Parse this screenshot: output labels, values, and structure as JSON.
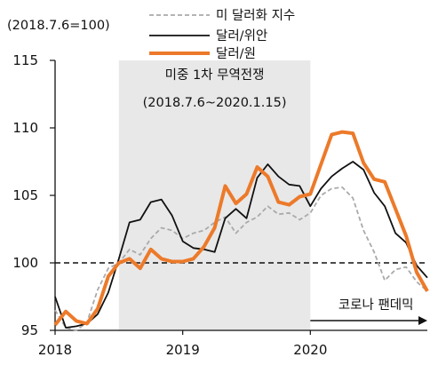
{
  "chart_data": {
    "type": "line",
    "unit_label": "(2018.7.6=100)",
    "x_ticks": [
      "2018",
      "2019",
      "2020"
    ],
    "y_ticks": [
      95,
      100,
      105,
      110,
      115
    ],
    "xlim": [
      "2018-01",
      "2020-12"
    ],
    "ylim": [
      95,
      115
    ],
    "reference_line": {
      "y": 100,
      "style": "dashed"
    },
    "shaded_period": {
      "from": "2018-07",
      "to": "2020-01",
      "label": "미중 1차 무역전쟁",
      "sublabel": "(2018.7.6~2020.1.15)"
    },
    "arrow_annotation": {
      "from": "2020-01",
      "to": "2020-12",
      "label": "코로나 팬데믹"
    },
    "legend_position": "top-right",
    "colors": {
      "dollar_index": "#aaaaaa",
      "usd_cny": "#111111",
      "usd_krw": "#ec7a2a",
      "shade": "#e8e8e8"
    },
    "series": [
      {
        "name": "미 달러화 지수",
        "style": "dashed",
        "x": [
          "2018-01",
          "2018-02",
          "2018-03",
          "2018-04",
          "2018-05",
          "2018-06",
          "2018-07",
          "2018-08",
          "2018-09",
          "2018-10",
          "2018-11",
          "2018-12",
          "2019-01",
          "2019-02",
          "2019-03",
          "2019-04",
          "2019-05",
          "2019-06",
          "2019-07",
          "2019-08",
          "2019-09",
          "2019-10",
          "2019-11",
          "2019-12",
          "2020-01",
          "2020-02",
          "2020-03",
          "2020-04",
          "2020-05",
          "2020-06",
          "2020-07",
          "2020-08",
          "2020-09",
          "2020-10",
          "2020-11",
          "2020-12"
        ],
        "values": [
          96.5,
          95.2,
          95.0,
          95.6,
          98.0,
          99.6,
          100.0,
          101.0,
          100.6,
          101.8,
          102.6,
          102.4,
          101.8,
          102.2,
          102.4,
          103.0,
          103.4,
          102.2,
          103.0,
          103.4,
          104.2,
          103.6,
          103.7,
          103.2,
          103.7,
          105.0,
          105.5,
          105.6,
          104.8,
          102.4,
          100.8,
          98.7,
          99.5,
          99.7,
          98.6,
          97.9
        ]
      },
      {
        "name": "달러/위안",
        "style": "solid",
        "x": [
          "2018-01",
          "2018-02",
          "2018-03",
          "2018-04",
          "2018-05",
          "2018-06",
          "2018-07",
          "2018-08",
          "2018-09",
          "2018-10",
          "2018-11",
          "2018-12",
          "2019-01",
          "2019-02",
          "2019-03",
          "2019-04",
          "2019-05",
          "2019-06",
          "2019-07",
          "2019-08",
          "2019-09",
          "2019-10",
          "2019-11",
          "2019-12",
          "2020-01",
          "2020-02",
          "2020-03",
          "2020-04",
          "2020-05",
          "2020-06",
          "2020-07",
          "2020-08",
          "2020-09",
          "2020-10",
          "2020-11",
          "2020-12"
        ],
        "values": [
          97.5,
          95.2,
          95.3,
          95.5,
          96.2,
          97.8,
          100.3,
          103.0,
          103.2,
          104.5,
          104.7,
          103.5,
          101.6,
          101.1,
          101.0,
          100.8,
          103.3,
          104.0,
          103.3,
          106.3,
          107.3,
          106.4,
          105.8,
          105.7,
          104.2,
          105.5,
          106.4,
          107.0,
          107.5,
          106.9,
          105.2,
          104.2,
          102.2,
          101.5,
          99.8,
          98.9
        ]
      },
      {
        "name": "달러/원",
        "style": "solid-thick",
        "x": [
          "2018-01",
          "2018-02",
          "2018-03",
          "2018-04",
          "2018-05",
          "2018-06",
          "2018-07",
          "2018-08",
          "2018-09",
          "2018-10",
          "2018-11",
          "2018-12",
          "2019-01",
          "2019-02",
          "2019-03",
          "2019-04",
          "2019-05",
          "2019-06",
          "2019-07",
          "2019-08",
          "2019-09",
          "2019-10",
          "2019-11",
          "2019-12",
          "2020-01",
          "2020-02",
          "2020-03",
          "2020-04",
          "2020-05",
          "2020-06",
          "2020-07",
          "2020-08",
          "2020-09",
          "2020-10",
          "2020-11",
          "2020-12"
        ],
        "values": [
          95.4,
          96.4,
          95.7,
          95.5,
          96.6,
          99.0,
          100.0,
          100.3,
          99.6,
          101.0,
          100.3,
          100.1,
          100.1,
          100.3,
          101.2,
          102.6,
          105.7,
          104.4,
          105.1,
          107.1,
          106.4,
          104.5,
          104.3,
          104.9,
          105.1,
          107.3,
          109.5,
          109.7,
          109.6,
          107.4,
          106.2,
          106.0,
          104.0,
          102.0,
          99.3,
          97.9
        ]
      }
    ]
  }
}
